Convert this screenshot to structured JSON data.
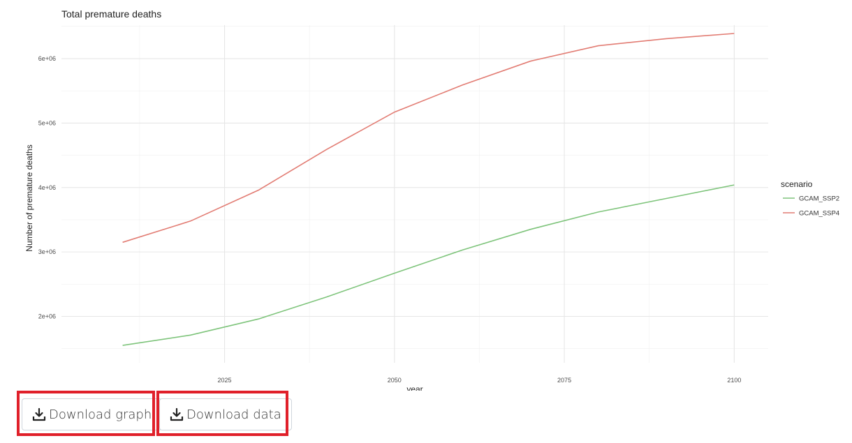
{
  "chart_data": {
    "type": "line",
    "title": "Total premature deaths",
    "xlabel": "year",
    "ylabel": "Number of premature deaths",
    "xlim": [
      2001,
      2105
    ],
    "ylim": [
      1280000,
      6520000
    ],
    "xticks": [
      2025,
      2050,
      2075,
      2100
    ],
    "yticks": [
      2000000,
      3000000,
      4000000,
      5000000,
      6000000
    ],
    "xtick_labels": [
      "2025",
      "2050",
      "2075",
      "2100"
    ],
    "ytick_labels": [
      "2e+06",
      "3e+06",
      "4e+06",
      "5e+06",
      "6e+06"
    ],
    "grid": true,
    "legend": {
      "title": "scenario",
      "position": "right"
    },
    "x": [
      2010,
      2020,
      2030,
      2040,
      2050,
      2060,
      2070,
      2080,
      2090,
      2100
    ],
    "series": [
      {
        "name": "GCAM_SSP2",
        "color": "#7ec47b",
        "values": [
          1550000,
          1710000,
          1960000,
          2300000,
          2670000,
          3030000,
          3350000,
          3620000,
          3830000,
          4040000
        ]
      },
      {
        "name": "GCAM_SSP4",
        "color": "#e27c73",
        "values": [
          3150000,
          3480000,
          3960000,
          4590000,
          5170000,
          5590000,
          5960000,
          6200000,
          6310000,
          6390000
        ]
      }
    ]
  },
  "buttons": {
    "download_graph": "Download graph",
    "download_data": "Download data"
  }
}
